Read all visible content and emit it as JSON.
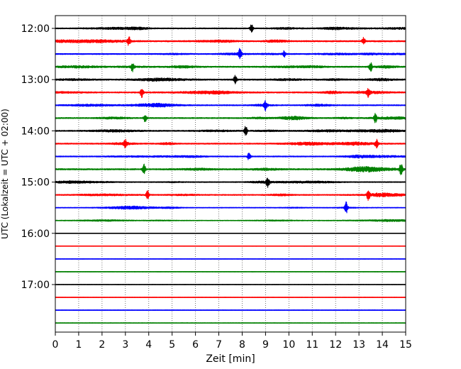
{
  "chart_data": {
    "type": "line",
    "title": "",
    "xlabel": "Zeit  [min]",
    "ylabel": "UTC (Lokalzeit = UTC + 02:00)",
    "xlim": [
      0,
      15
    ],
    "x_ticks": [
      "0",
      "1",
      "2",
      "3",
      "4",
      "5",
      "6",
      "7",
      "8",
      "9",
      "10",
      "11",
      "12",
      "13",
      "14",
      "15"
    ],
    "y_ticks": [
      {
        "label": "12:00",
        "row": 0
      },
      {
        "label": "13:00",
        "row": 4
      },
      {
        "label": "14:00",
        "row": 8
      },
      {
        "label": "15:00",
        "row": 12
      },
      {
        "label": "16:00",
        "row": 16
      },
      {
        "label": "17:00",
        "row": 20
      }
    ],
    "row_minutes": 15,
    "grid": "vertical dotted",
    "colors": {
      "black": "#000000",
      "red": "#ff0000",
      "blue": "#0000ff",
      "green": "#008000"
    },
    "traces": [
      {
        "start": "12:00",
        "color": "black",
        "level": 0.45,
        "events": [
          [
            8.4,
            1.0
          ]
        ]
      },
      {
        "start": "12:15",
        "color": "red",
        "level": 0.55,
        "events": [
          [
            3.15,
            0.9
          ],
          [
            13.2,
            0.7
          ]
        ]
      },
      {
        "start": "12:30",
        "color": "blue",
        "level": 0.45,
        "events": [
          [
            7.9,
            1.0
          ],
          [
            9.8,
            0.6
          ]
        ]
      },
      {
        "start": "12:45",
        "color": "green",
        "level": 0.55,
        "events": [
          [
            3.3,
            0.9
          ],
          [
            13.5,
            1.0
          ]
        ]
      },
      {
        "start": "13:00",
        "color": "black",
        "level": 0.55,
        "events": [
          [
            7.7,
            0.8
          ]
        ]
      },
      {
        "start": "13:15",
        "color": "red",
        "level": 0.55,
        "events": [
          [
            3.7,
            1.0
          ],
          [
            13.4,
            0.8
          ]
        ]
      },
      {
        "start": "13:30",
        "color": "blue",
        "level": 0.45,
        "events": [
          [
            9.0,
            0.9
          ]
        ]
      },
      {
        "start": "13:45",
        "color": "green",
        "level": 0.5,
        "events": [
          [
            3.85,
            0.9
          ],
          [
            13.7,
            0.9
          ]
        ]
      },
      {
        "start": "14:00",
        "color": "black",
        "level": 0.5,
        "events": [
          [
            8.15,
            0.9
          ]
        ]
      },
      {
        "start": "14:15",
        "color": "red",
        "level": 0.5,
        "events": [
          [
            3.0,
            0.8
          ],
          [
            13.75,
            0.8
          ]
        ]
      },
      {
        "start": "14:30",
        "color": "blue",
        "level": 0.45,
        "events": [
          [
            8.3,
            0.9
          ]
        ]
      },
      {
        "start": "14:45",
        "color": "green",
        "level": 0.6,
        "events": [
          [
            3.8,
            1.0
          ],
          [
            14.8,
            1.2
          ]
        ]
      },
      {
        "start": "15:00",
        "color": "black",
        "level": 0.4,
        "events": [
          [
            9.1,
            1.0
          ]
        ]
      },
      {
        "start": "15:15",
        "color": "red",
        "level": 0.45,
        "events": [
          [
            3.95,
            0.9
          ],
          [
            13.4,
            1.0
          ]
        ]
      },
      {
        "start": "15:30",
        "color": "blue",
        "level": 0.3,
        "events": [
          [
            12.45,
            1.2
          ]
        ]
      },
      {
        "start": "15:45",
        "color": "green",
        "level": 0.3,
        "events": []
      },
      {
        "start": "16:00",
        "color": "black",
        "level": 0.02,
        "events": []
      },
      {
        "start": "16:15",
        "color": "red",
        "level": 0.02,
        "events": []
      },
      {
        "start": "16:30",
        "color": "blue",
        "level": 0.04,
        "events": []
      },
      {
        "start": "16:45",
        "color": "green",
        "level": 0.04,
        "events": []
      },
      {
        "start": "17:00",
        "color": "black",
        "level": 0.04,
        "events": []
      },
      {
        "start": "17:15",
        "color": "red",
        "level": 0.04,
        "events": []
      },
      {
        "start": "17:30",
        "color": "blue",
        "level": 0.05,
        "events": []
      },
      {
        "start": "17:45",
        "color": "green",
        "level": 0.05,
        "events": []
      }
    ]
  }
}
